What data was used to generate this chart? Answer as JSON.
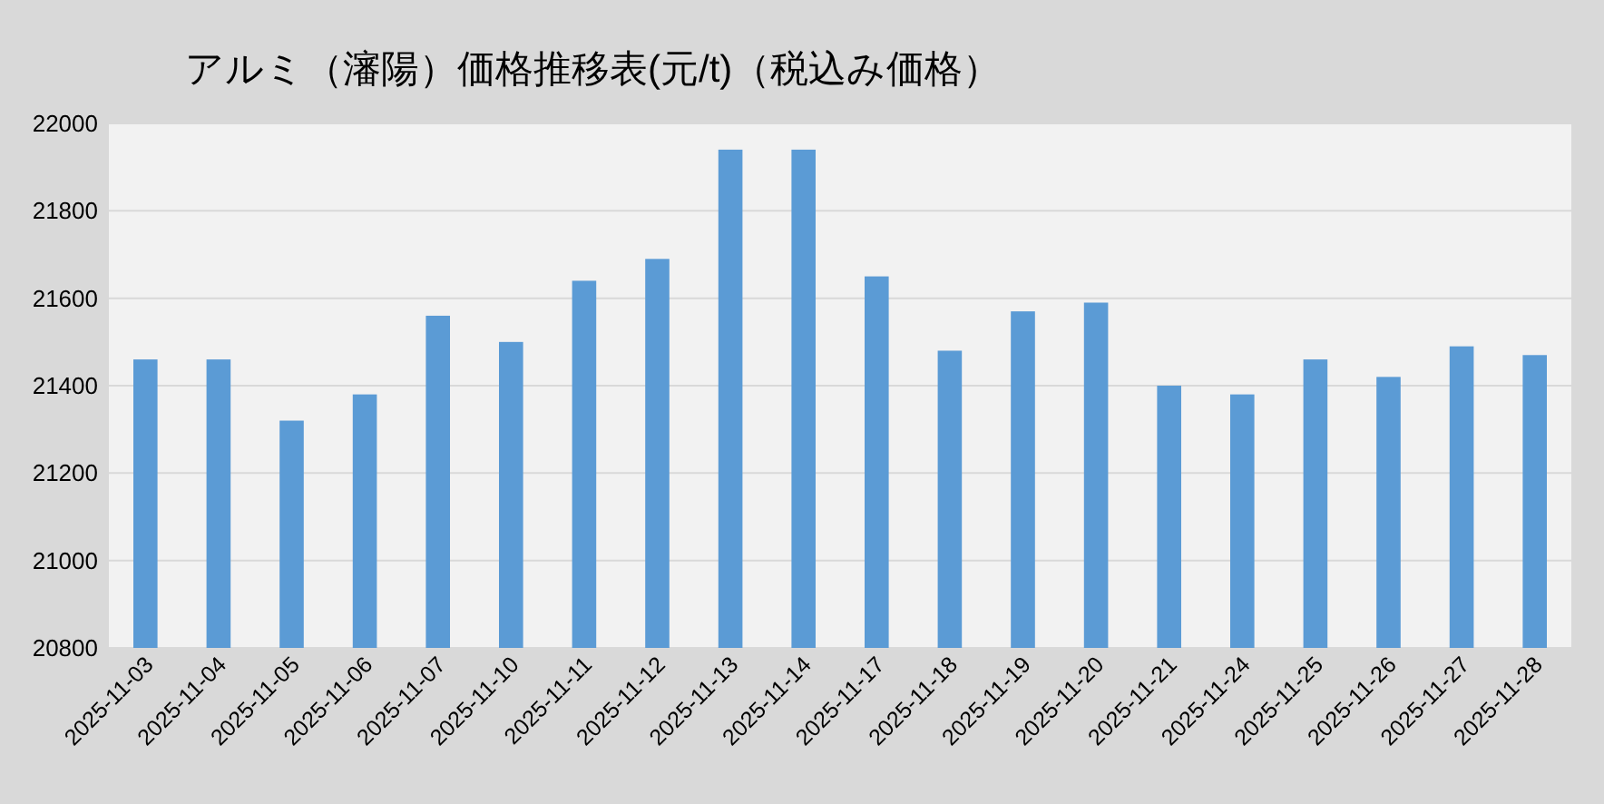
{
  "chart_data": {
    "type": "bar",
    "title": "アルミ（瀋陽）価格推移表(元/t)（税込み価格）",
    "categories": [
      "2025-11-03",
      "2025-11-04",
      "2025-11-05",
      "2025-11-06",
      "2025-11-07",
      "2025-11-10",
      "2025-11-11",
      "2025-11-12",
      "2025-11-13",
      "2025-11-14",
      "2025-11-17",
      "2025-11-18",
      "2025-11-19",
      "2025-11-20",
      "2025-11-21",
      "2025-11-24",
      "2025-11-25",
      "2025-11-26",
      "2025-11-27",
      "2025-11-28"
    ],
    "values": [
      21460,
      21460,
      21320,
      21380,
      21560,
      21500,
      21640,
      21690,
      21940,
      21940,
      21650,
      21480,
      21570,
      21590,
      21400,
      21380,
      21460,
      21420,
      21490,
      21470
    ],
    "color": "#5b9bd5",
    "ylim": [
      20800,
      22000
    ],
    "yticks": [
      20800,
      21000,
      21200,
      21400,
      21600,
      21800,
      22000
    ],
    "grid": "y"
  }
}
